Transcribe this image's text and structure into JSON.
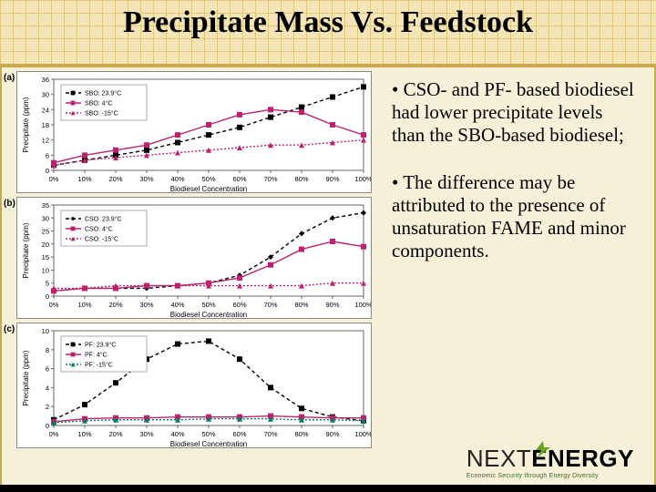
{
  "title": "Precipitate Mass Vs. Feedstock",
  "bullets": [
    "•  CSO- and PF- based biodiesel had lower precipitate levels than the SBO-based biodiesel;",
    "• The difference may be attributed to  the presence of  unsaturation FAME and minor components."
  ],
  "background": {
    "grid_color": "#e0c878",
    "page_bg": "#f7f0d8",
    "band_bg": "#f3e5b8",
    "border": "#c9a84e"
  },
  "logo": {
    "text_light": "NEXT",
    "text_bold": "ENERGY",
    "tagline": "Economic Security through Energy Diversity",
    "accent": "#6aa321"
  },
  "charts": [
    {
      "label": "(a)",
      "height": 134,
      "xlabel": "Biodiesel Concentration",
      "ylabel": "Precipitate (ppm)",
      "xlim": [
        0,
        100
      ],
      "xtick_step": 10,
      "xtick_suffix": "%",
      "ylim": [
        0,
        36
      ],
      "yticks": [
        0,
        6,
        12,
        18,
        24,
        30,
        36
      ],
      "legend_pos": "top-left",
      "series": [
        {
          "name": "SBO: 23.9°C",
          "color": "#000000",
          "marker": "square",
          "dash": "4,3",
          "x": [
            0,
            10,
            20,
            30,
            40,
            50,
            60,
            70,
            80,
            90,
            100
          ],
          "y": [
            2,
            4,
            6,
            8,
            11,
            14,
            17,
            21,
            25,
            29,
            33
          ]
        },
        {
          "name": "SBO: 4°C",
          "color": "#c02070",
          "marker": "square",
          "dash": "",
          "x": [
            0,
            10,
            20,
            30,
            40,
            50,
            60,
            70,
            80,
            90,
            100
          ],
          "y": [
            3,
            6,
            8,
            10,
            14,
            18,
            22,
            24,
            23,
            18,
            14
          ]
        },
        {
          "name": "SBO: -15°C",
          "color": "#c02070",
          "marker": "triangle",
          "dash": "2,2",
          "x": [
            0,
            10,
            20,
            30,
            40,
            50,
            60,
            70,
            80,
            90,
            100
          ],
          "y": [
            2,
            4,
            5,
            6,
            7,
            8,
            9,
            10,
            10,
            11,
            12
          ]
        }
      ]
    },
    {
      "label": "(b)",
      "height": 134,
      "xlabel": "Biodiesel Concentration",
      "ylabel": "Precipitate (ppm)",
      "xlim": [
        0,
        100
      ],
      "xtick_step": 10,
      "xtick_suffix": "%",
      "ylim": [
        0,
        35
      ],
      "yticks": [
        0,
        5,
        10,
        15,
        20,
        25,
        30,
        35
      ],
      "legend_pos": "top-left",
      "series": [
        {
          "name": "CSO: 23.9°C",
          "color": "#000000",
          "marker": "diamond",
          "dash": "4,3",
          "x": [
            0,
            10,
            20,
            30,
            40,
            50,
            60,
            70,
            80,
            90,
            100
          ],
          "y": [
            2,
            3,
            3,
            3,
            4,
            5,
            8,
            15,
            24,
            30,
            32
          ]
        },
        {
          "name": "CSO: 4°C",
          "color": "#c02070",
          "marker": "square",
          "dash": "",
          "x": [
            0,
            10,
            20,
            30,
            40,
            50,
            60,
            70,
            80,
            90,
            100
          ],
          "y": [
            2,
            3,
            3,
            4,
            4,
            5,
            7,
            12,
            18,
            21,
            19
          ]
        },
        {
          "name": "CSO: -15°C",
          "color": "#c02070",
          "marker": "triangle",
          "dash": "2,2",
          "x": [
            0,
            10,
            20,
            30,
            40,
            50,
            60,
            70,
            80,
            90,
            100
          ],
          "y": [
            3,
            3,
            4,
            4,
            4,
            4,
            4,
            4,
            4,
            5,
            5
          ]
        }
      ]
    },
    {
      "label": "(c)",
      "height": 138,
      "xlabel": "Biodiesel Concentration",
      "ylabel": "Precipitate (ppm)",
      "xlim": [
        0,
        100
      ],
      "xtick_step": 10,
      "xtick_suffix": "%",
      "ylim": [
        0,
        10
      ],
      "yticks": [
        0,
        2,
        4,
        6,
        8,
        10
      ],
      "legend_pos": "top-left",
      "series": [
        {
          "name": "PF: 23.9°C",
          "color": "#000000",
          "marker": "square",
          "dash": "4,3",
          "x": [
            0,
            10,
            20,
            30,
            40,
            50,
            60,
            70,
            80,
            90,
            100
          ],
          "y": [
            0.6,
            2.2,
            4.5,
            7.0,
            8.6,
            8.9,
            7.0,
            4.0,
            1.8,
            0.9,
            0.5
          ]
        },
        {
          "name": "PF: 4°C",
          "color": "#c02070",
          "marker": "square",
          "dash": "",
          "x": [
            0,
            10,
            20,
            30,
            40,
            50,
            60,
            70,
            80,
            90,
            100
          ],
          "y": [
            0.4,
            0.7,
            0.8,
            0.8,
            0.9,
            0.9,
            0.9,
            1.0,
            0.9,
            0.8,
            0.8
          ]
        },
        {
          "name": "PF: -15°C",
          "color": "#008060",
          "marker": "triangle",
          "dash": "2,2",
          "x": [
            0,
            10,
            20,
            30,
            40,
            50,
            60,
            70,
            80,
            90,
            100
          ],
          "y": [
            0.3,
            0.5,
            0.6,
            0.6,
            0.6,
            0.7,
            0.7,
            0.7,
            0.6,
            0.6,
            0.5
          ]
        }
      ]
    }
  ],
  "chart_style": {
    "plot_bg": "#ffffff",
    "axis_color": "#666666",
    "tick_font": 7.5,
    "label_font": 8,
    "legend_font": 7,
    "margins": {
      "l": 40,
      "r": 10,
      "t": 8,
      "b": 26
    },
    "line_width": 1.4,
    "marker_size": 3
  }
}
